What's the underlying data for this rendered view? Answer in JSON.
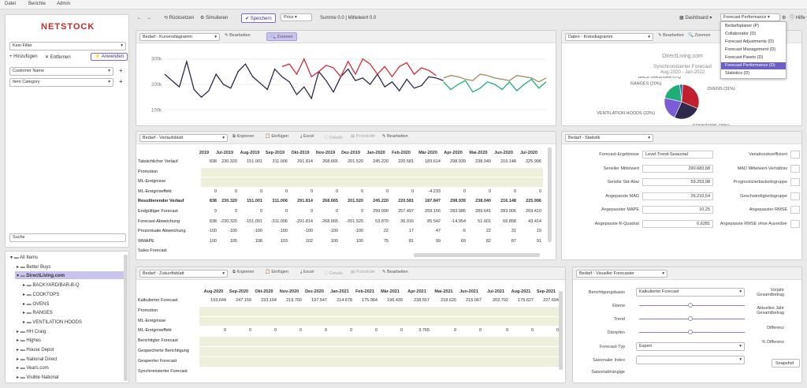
{
  "menu": {
    "items": [
      "Datei",
      "Berichte",
      "Admin"
    ]
  },
  "toolbar": {
    "reset": "Rücksetzen",
    "simulate": "Simulieren",
    "save": "Speichern",
    "measure": "Price",
    "summary": "Summe 0.0 | Mittelwert 0.0",
    "dashboard": "Dashboard",
    "view": "Forecast Performance",
    "help": "Hilfe"
  },
  "sidebar": {
    "logo": "NETSTOCK",
    "filter": "Kein Filter",
    "add": "Hinzufügen",
    "remove": "Entfernen",
    "apply": "Anwenden",
    "attributes": [
      "Customer Name",
      "Item Category"
    ],
    "search_placeholder": "Suche",
    "tree": [
      {
        "label": "All Items",
        "level": 0,
        "exp": true
      },
      {
        "label": "Better Buys",
        "level": 1,
        "exp": false
      },
      {
        "label": "DirectLiving.com",
        "level": 1,
        "exp": true,
        "selected": true
      },
      {
        "label": "BACKYARD/BAR-B-Q",
        "level": 2
      },
      {
        "label": "COOKTOPS",
        "level": 2
      },
      {
        "label": "OVENS",
        "level": 2
      },
      {
        "label": "RANGES",
        "level": 2
      },
      {
        "label": "VENTILATION HOODS",
        "level": 2
      },
      {
        "label": "HH Craig",
        "level": 1
      },
      {
        "label": "Highes",
        "level": 1
      },
      {
        "label": "House Depot",
        "level": 1
      },
      {
        "label": "National Direct",
        "level": 1
      },
      {
        "label": "Vears.com",
        "level": 1
      },
      {
        "label": "Visible National",
        "level": 1
      }
    ]
  },
  "line_panel": {
    "selector": "Bedarf - Kurvendiagramm",
    "edit": "Bearbeiten",
    "zoom": "Zoomen"
  },
  "pie_panel": {
    "selector": "Daten - Kreisdiagramm",
    "edit": "Bearbeiten",
    "zoom": "Zoomen",
    "title": "DirectLiving.com",
    "subtitle": "Synchronisierter Forecast",
    "range": "Aug-2020 - Jan-2022"
  },
  "grid_panel": {
    "selector": "Bedarf - Verlaufsblatt",
    "copy": "Kopieren",
    "paste": "Einfügen",
    "excel": "Excel",
    "details": "Details",
    "protocol": "Protokolle",
    "edit": "Bearbeiten",
    "months": [
      "2019",
      "Jul-2019",
      "Aug-2019",
      "Sep-2019",
      "Okt-2019",
      "Nov-2019",
      "Dez-2019",
      "Jan-2020",
      "Feb-2020",
      "Mär-2020",
      "Apr-2020",
      "Mai-2020",
      "Jun-2020",
      "Jul-2020"
    ],
    "rows": [
      {
        "label": "Tatsächlicher Verlauf",
        "vals": [
          "838",
          "230.320",
          "151.001",
          "311.006",
          "291.814",
          "268.665",
          "201.520",
          "245.220",
          "220.581",
          "183.614",
          "298.939",
          "238.040",
          "216.148",
          "225.996"
        ]
      },
      {
        "label": "Promotion",
        "vals": [],
        "band": true
      },
      {
        "label": "ML-Ereignisse",
        "vals": [],
        "band": true
      },
      {
        "label": "ML-Ereigniseffekt",
        "vals": [
          "0",
          "0",
          "0",
          "0",
          "0",
          "0",
          "0",
          "0",
          "0",
          "-4.233",
          "0",
          "0",
          "0",
          "0"
        ]
      },
      {
        "label": "Resultierender Verlauf",
        "vals": [
          "838",
          "230.320",
          "151.001",
          "311.006",
          "291.814",
          "268.665",
          "201.520",
          "245.220",
          "220.581",
          "187.847",
          "298.939",
          "238.040",
          "216.148",
          "225.996"
        ],
        "bold": true
      },
      {
        "label": "Endgültiger Forecast",
        "vals": [
          "0",
          "0",
          "0",
          "0",
          "0",
          "0",
          "0",
          "299.090",
          "257.497",
          "269.156",
          "283.985",
          "289.641",
          "283.006",
          "269.410"
        ]
      },
      {
        "label": "Forecast-Abweichung",
        "vals": [
          "838",
          "-230.320",
          "-151.001",
          "-311.006",
          "-291.814",
          "-268.665",
          "-201.520",
          "53.870",
          "36.916",
          "85.542",
          "-14.954",
          "51.601",
          "66.858",
          "43.414"
        ]
      },
      {
        "label": "Prozentuale Abweichung",
        "vals": [
          "-100",
          "-100",
          "-100",
          "-100",
          "-100",
          "-100",
          "-100",
          "22",
          "17",
          "47",
          "-5",
          "22",
          "31",
          "19"
        ]
      },
      {
        "label": "WMAPE",
        "vals": [
          "100",
          "105",
          "108",
          "103",
          "102",
          "100",
          "100",
          "75",
          "81",
          "99",
          "69",
          "82",
          "87",
          "91"
        ]
      },
      {
        "label": "Sales Forecast",
        "vals": []
      }
    ]
  },
  "stats_panel": {
    "selector": "Bedarf - Statistik",
    "left": [
      {
        "label": "Forecast-Ergebnisse",
        "value": "Level-Trend-Seasonal"
      },
      {
        "label": "Serieller Mittelwert",
        "value": "290.683,68"
      },
      {
        "label": "Serielle Std-Abw",
        "value": "59.253,98"
      },
      {
        "label": "Angepasste MAD",
        "value": "26.210,54"
      },
      {
        "label": "Angepasster MAPE",
        "value": "10,25"
      },
      {
        "label": "Angepasste R-Quadrat",
        "value": "0,6281"
      }
    ],
    "right": [
      "Variationskoeffizient",
      "MAD Mittelwert-Verhältnis",
      "Prognostizierbarkeitsgruppe",
      "Geschwindigkeitsgruppe",
      "Angepasster RMSE",
      "Angepasste RMSE ohne Ausreißer"
    ]
  },
  "future_panel": {
    "selector": "Bedarf - Zukunftsblatt",
    "copy": "Kopieren",
    "paste": "Einfügen",
    "excel": "Excel",
    "details": "Details",
    "protocol": "Protokolle",
    "edit": "Bearbeiten",
    "months": [
      "Aug-2020",
      "Sep-2020",
      "Okt-2020",
      "Nov-2020",
      "Dez-2020",
      "Jan-2021",
      "Feb-2021",
      "Mär-2021",
      "Apr-2021",
      "Mai-2021",
      "Jun-2021",
      "Jul-2021",
      "Aug-2021",
      "Sep-2021"
    ],
    "rows": [
      {
        "label": "Kalkulierter Forecast",
        "vals": [
          "193.644",
          "247.159",
          "233.164",
          "219.760",
          "197.547",
          "214.678",
          "175.964",
          "196.439",
          "238.557",
          "218.620",
          "215.067",
          "202.792",
          "175.627",
          "227.694"
        ]
      },
      {
        "label": "Promotion",
        "vals": [],
        "band": true
      },
      {
        "label": "ML-Ereignisse",
        "vals": [],
        "band": true
      },
      {
        "label": "ML-Ereigniseffekt",
        "vals": [
          "0",
          "0",
          "0",
          "0",
          "0",
          "0",
          "0",
          "0",
          "3.765",
          "0",
          "0",
          "0",
          "0",
          "0"
        ]
      },
      {
        "label": "Berichtigter Forecast",
        "vals": [],
        "band": true
      },
      {
        "label": "Gespeicherte Berichtigung",
        "vals": [],
        "band": true
      },
      {
        "label": "Gesperrter Forecast",
        "vals": [],
        "band": true
      },
      {
        "label": "Synchronisierter Forecast",
        "vals": []
      }
    ]
  },
  "visual_panel": {
    "selector": "Bedarf - Visueller Forecaster",
    "basis_label": "Berichtigungsbasis",
    "basis": "Kalkulierter Forecast",
    "level": "Ebene",
    "trend": "Trend",
    "damp": "Dämpfen",
    "type_label": "Forecast-Typ",
    "type": "Expert",
    "season_label": "Saisonaler Index",
    "season_dep": "Saisonabhängige",
    "right": [
      "Vorjahr Gesamtbetrag",
      "Aktuelles Jahr Gesamtbetrag",
      "Differenz",
      "% Differenz"
    ],
    "snapshot": "Snapshot"
  },
  "dropdown": {
    "items": [
      "Bedarfsplaner (P)",
      "Collaborator (D)",
      "Forecast Adjustments (D)",
      "Forecast Management (D)",
      "Forecast Pareto (D)",
      "Forecast Performance (D)",
      "Statistics (D)"
    ],
    "selected": 5
  },
  "chart_data": [
    {
      "type": "line",
      "ylabel": "",
      "yticks": [
        "300k",
        "200k",
        "100k"
      ],
      "ylim": [
        70000,
        330000
      ],
      "series": [
        {
          "color": "#2d2a4a",
          "values": [
            240000,
            215000,
            190000,
            290000,
            180000,
            150000,
            175000,
            240000,
            200000,
            185000,
            250000,
            280000,
            230000,
            205000,
            180000,
            260000,
            230000,
            210000,
            160000,
            190000,
            145000,
            250000,
            215000,
            170000,
            230000,
            260000,
            215000,
            225000,
            200000,
            240000,
            190000,
            210000,
            175000,
            220000,
            185000,
            195000,
            230000,
            225000,
            215000
          ]
        },
        {
          "color": "#d62a3c",
          "values": [
            null,
            null,
            null,
            null,
            null,
            null,
            null,
            null,
            null,
            null,
            null,
            null,
            null,
            null,
            null,
            null,
            270000,
            280000,
            240000,
            300000,
            230000,
            250000,
            275000,
            265000,
            230000,
            290000,
            240000,
            300000,
            280000,
            240000,
            270000,
            230000,
            270000,
            285000,
            240000,
            265000,
            255000,
            235000,
            null
          ]
        },
        {
          "color": "#9c8f5e",
          "values": [
            null,
            null,
            null,
            null,
            null,
            null,
            null,
            null,
            null,
            null,
            null,
            null,
            null,
            null,
            null,
            null,
            null,
            null,
            null,
            null,
            null,
            null,
            null,
            null,
            null,
            null,
            null,
            null,
            null,
            null,
            null,
            null,
            null,
            null,
            null,
            null,
            null,
            null,
            225000,
            235000,
            230000,
            220000,
            215000,
            240000,
            235000,
            225000,
            220000,
            215000,
            235000,
            230000,
            225000,
            210000,
            225000
          ]
        },
        {
          "color": "#1fae77",
          "values": [
            null,
            null,
            null,
            null,
            null,
            null,
            null,
            null,
            null,
            null,
            null,
            null,
            null,
            null,
            null,
            null,
            null,
            null,
            null,
            null,
            null,
            null,
            null,
            null,
            null,
            null,
            null,
            null,
            null,
            null,
            null,
            null,
            null,
            null,
            null,
            null,
            null,
            null,
            210000,
            180000,
            200000,
            215000,
            170000,
            185000,
            210000,
            200000,
            180000,
            210000,
            175000,
            200000,
            220000,
            185000,
            210000
          ]
        }
      ]
    },
    {
      "type": "pie",
      "categories": [
        "BACKYARD/BAR-B-Q",
        "OVENS",
        "COOKTOPS",
        "VENTILATION HOODS",
        "RANGES"
      ],
      "values": [
        3,
        31,
        26,
        22,
        20
      ],
      "labels": [
        "BACKYARD/BAR-B-Q",
        "OVENS (31%)",
        "COOKTOPS (26%)",
        "VENTILATION HOODS (22%)",
        "RANGES (20%)"
      ],
      "colors": [
        "#2b6fb6",
        "#c0202e",
        "#2d2a4a",
        "#7d5bd6",
        "#1fae77"
      ]
    }
  ]
}
